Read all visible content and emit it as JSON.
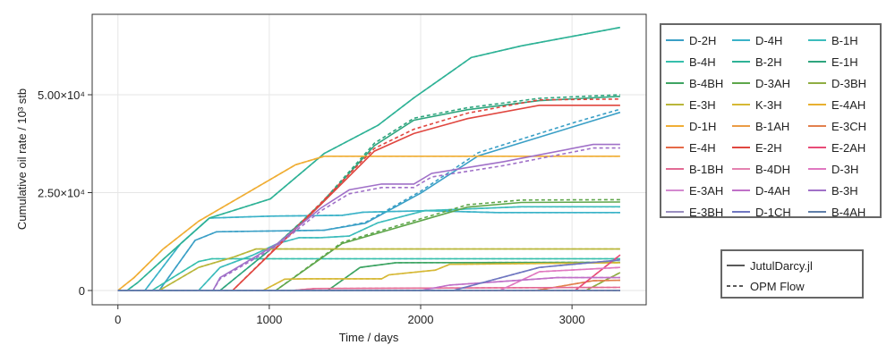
{
  "chart_data": {
    "type": "line",
    "xlabel": "Time / days",
    "ylabel": "Cumulative oil rate / 10³ stb",
    "xlim": [
      -170,
      3490
    ],
    "ylim": [
      -3650,
      70550
    ],
    "xticks": [
      {
        "v": 0,
        "label": "0"
      },
      {
        "v": 1000,
        "label": "1000"
      },
      {
        "v": 2000,
        "label": "2000"
      },
      {
        "v": 3000,
        "label": "3000"
      }
    ],
    "yticks": [
      {
        "v": 0,
        "label": "0"
      },
      {
        "v": 25000,
        "label": "2.50×10⁴"
      },
      {
        "v": 50000,
        "label": "5.00×10⁴"
      }
    ],
    "grid": true,
    "legend_placement": "right",
    "style_legend": [
      {
        "label": "JutulDarcy.jl",
        "dash": "solid"
      },
      {
        "label": "OPM Flow",
        "dash": "dashed"
      }
    ],
    "series": [
      {
        "name": "D-2H",
        "color": "#3a9fc6",
        "jutul": [
          [
            0,
            0
          ],
          [
            273,
            0
          ],
          [
            510,
            12800
          ],
          [
            652,
            15000
          ],
          [
            1363,
            15400
          ],
          [
            1635,
            17200
          ],
          [
            2002,
            24900
          ],
          [
            2381,
            34400
          ],
          [
            3021,
            42000
          ],
          [
            3318,
            45500
          ]
        ],
        "opm": [
          [
            0,
            0
          ],
          [
            273,
            0
          ],
          [
            510,
            12800
          ],
          [
            652,
            15000
          ],
          [
            1363,
            15400
          ],
          [
            1635,
            17400
          ],
          [
            2002,
            25400
          ],
          [
            2381,
            35200
          ],
          [
            3021,
            43000
          ],
          [
            3318,
            46300
          ]
        ]
      },
      {
        "name": "D-4H",
        "color": "#3ab2c8",
        "jutul": [
          [
            0,
            0
          ],
          [
            178,
            0
          ],
          [
            415,
            12000
          ],
          [
            604,
            18500
          ],
          [
            1007,
            19000
          ],
          [
            1481,
            19200
          ],
          [
            1620,
            20000
          ],
          [
            2040,
            20400
          ],
          [
            2500,
            19900
          ],
          [
            3318,
            19900
          ]
        ]
      },
      {
        "name": "B-1H",
        "color": "#3cbcbc",
        "jutul": [
          [
            0,
            0
          ],
          [
            533,
            0
          ],
          [
            675,
            5900
          ],
          [
            889,
            9000
          ],
          [
            1055,
            12000
          ],
          [
            1197,
            13500
          ],
          [
            1339,
            13500
          ],
          [
            1528,
            13900
          ],
          [
            1718,
            17300
          ],
          [
            2026,
            20400
          ],
          [
            2666,
            21400
          ],
          [
            3318,
            21400
          ]
        ]
      },
      {
        "name": "B-4H",
        "color": "#36bfac",
        "jutul": [
          [
            0,
            0
          ],
          [
            225,
            0
          ],
          [
            533,
            7400
          ],
          [
            620,
            8100
          ],
          [
            3318,
            8100
          ]
        ]
      },
      {
        "name": "B-2H",
        "color": "#2eb296",
        "jutul": [
          [
            0,
            0
          ],
          [
            60,
            0
          ],
          [
            130,
            2000
          ],
          [
            300,
            8000
          ],
          [
            604,
            18500
          ],
          [
            1007,
            23400
          ],
          [
            1363,
            35000
          ],
          [
            1718,
            42200
          ],
          [
            1955,
            49200
          ],
          [
            2334,
            59500
          ],
          [
            2666,
            62500
          ],
          [
            3318,
            67200
          ]
        ]
      },
      {
        "name": "E-1H",
        "color": "#2ea57e",
        "jutul": [
          [
            0,
            0
          ],
          [
            675,
            0
          ],
          [
            1055,
            12000
          ],
          [
            1339,
            21900
          ],
          [
            1694,
            37000
          ],
          [
            1955,
            43500
          ],
          [
            2310,
            46200
          ],
          [
            2784,
            48500
          ],
          [
            3318,
            49600
          ]
        ],
        "opm": [
          [
            0,
            0
          ],
          [
            675,
            0
          ],
          [
            1055,
            12000
          ],
          [
            1339,
            22100
          ],
          [
            1694,
            37600
          ],
          [
            1955,
            44000
          ],
          [
            2310,
            46700
          ],
          [
            2784,
            49100
          ],
          [
            3318,
            50000
          ]
        ]
      },
      {
        "name": "B-4BH",
        "color": "#3ea463",
        "jutul": [
          [
            0,
            0
          ],
          [
            1386,
            0
          ],
          [
            1600,
            5900
          ],
          [
            1837,
            7100
          ],
          [
            3318,
            7200
          ]
        ]
      },
      {
        "name": "D-3AH",
        "color": "#5ea64a",
        "jutul": [
          [
            0,
            0
          ],
          [
            1043,
            0
          ],
          [
            1481,
            12000
          ],
          [
            1955,
            17300
          ],
          [
            2310,
            21300
          ],
          [
            2666,
            22500
          ],
          [
            3318,
            22600
          ]
        ],
        "opm": [
          [
            0,
            0
          ],
          [
            1043,
            0
          ],
          [
            1481,
            12300
          ],
          [
            1955,
            17800
          ],
          [
            2310,
            21900
          ],
          [
            2666,
            23100
          ],
          [
            3318,
            23200
          ]
        ]
      },
      {
        "name": "D-3BH",
        "color": "#8fad42",
        "jutul": [
          [
            0,
            0
          ],
          [
            3092,
            0
          ],
          [
            3318,
            4600
          ]
        ]
      },
      {
        "name": "E-3H",
        "color": "#b9b63a",
        "jutul": [
          [
            0,
            0
          ],
          [
            273,
            0
          ],
          [
            533,
            5900
          ],
          [
            770,
            8600
          ],
          [
            912,
            10600
          ],
          [
            3318,
            10600
          ]
        ]
      },
      {
        "name": "K-3H",
        "color": "#d6b834",
        "jutul": [
          [
            0,
            0
          ],
          [
            960,
            0
          ],
          [
            1102,
            2900
          ],
          [
            1244,
            3000
          ],
          [
            1742,
            3000
          ],
          [
            1790,
            4000
          ],
          [
            2097,
            5200
          ],
          [
            2192,
            6700
          ],
          [
            3318,
            7100
          ]
        ]
      },
      {
        "name": "E-4AH",
        "color": "#e8b02f",
        "jutul": [
          [
            0,
            0
          ],
          [
            3318,
            0
          ]
        ]
      },
      {
        "name": "D-1H",
        "color": "#f0ae35",
        "jutul": [
          [
            0,
            0
          ],
          [
            107,
            3300
          ],
          [
            296,
            10500
          ],
          [
            533,
            17700
          ],
          [
            889,
            25700
          ],
          [
            1173,
            32100
          ],
          [
            1363,
            34300
          ],
          [
            3318,
            34300
          ]
        ]
      },
      {
        "name": "B-1AH",
        "color": "#eb9c45",
        "jutul": [
          [
            0,
            0
          ],
          [
            3318,
            0
          ]
        ]
      },
      {
        "name": "E-3CH",
        "color": "#e2804d",
        "jutul": [
          [
            0,
            0
          ],
          [
            2760,
            0
          ],
          [
            3140,
            2500
          ],
          [
            3318,
            2600
          ]
        ]
      },
      {
        "name": "E-4H",
        "color": "#e56a48",
        "jutul": [
          [
            0,
            0
          ],
          [
            3318,
            0
          ]
        ]
      },
      {
        "name": "E-2H",
        "color": "#e0463f",
        "jutul": [
          [
            0,
            0
          ],
          [
            758,
            0
          ],
          [
            1055,
            11200
          ],
          [
            1339,
            21900
          ],
          [
            1694,
            35600
          ],
          [
            1955,
            40100
          ],
          [
            2310,
            43900
          ],
          [
            2784,
            47300
          ],
          [
            3318,
            47300
          ]
        ],
        "opm": [
          [
            0,
            0
          ],
          [
            758,
            0
          ],
          [
            1055,
            11400
          ],
          [
            1339,
            22300
          ],
          [
            1694,
            36300
          ],
          [
            1955,
            41200
          ],
          [
            2310,
            45300
          ],
          [
            2784,
            48700
          ],
          [
            3318,
            48900
          ]
        ]
      },
      {
        "name": "E-2AH",
        "color": "#e84c78",
        "jutul": [
          [
            0,
            0
          ],
          [
            3021,
            0
          ],
          [
            3318,
            9100
          ]
        ]
      },
      {
        "name": "B-1BH",
        "color": "#e26a94",
        "jutul": [
          [
            0,
            0
          ],
          [
            1150,
            0
          ],
          [
            1300,
            500
          ],
          [
            3318,
            800
          ]
        ]
      },
      {
        "name": "B-4DH",
        "color": "#e482b0",
        "jutul": [
          [
            0,
            0
          ],
          [
            3318,
            0
          ]
        ]
      },
      {
        "name": "D-3H",
        "color": "#e078c0",
        "jutul": [
          [
            0,
            0
          ],
          [
            2524,
            0
          ],
          [
            2784,
            4800
          ],
          [
            3318,
            5900
          ]
        ]
      },
      {
        "name": "E-3AH",
        "color": "#d489d0",
        "jutul": [
          [
            0,
            0
          ],
          [
            3318,
            0
          ]
        ]
      },
      {
        "name": "D-4AH",
        "color": "#c070c8",
        "jutul": [
          [
            0,
            0
          ],
          [
            2000,
            0
          ],
          [
            2192,
            1400
          ],
          [
            2903,
            3300
          ],
          [
            3318,
            3300
          ]
        ]
      },
      {
        "name": "B-3H",
        "color": "#a070c8",
        "jutul": [
          [
            0,
            0
          ],
          [
            628,
            0
          ],
          [
            675,
            3300
          ],
          [
            1055,
            12000
          ],
          [
            1339,
            21000
          ],
          [
            1528,
            25700
          ],
          [
            1742,
            27200
          ],
          [
            1955,
            27200
          ],
          [
            2073,
            29900
          ],
          [
            2547,
            32900
          ],
          [
            3140,
            37300
          ],
          [
            3318,
            37300
          ]
        ],
        "opm": [
          [
            0,
            0
          ],
          [
            628,
            0
          ],
          [
            675,
            3000
          ],
          [
            1055,
            11500
          ],
          [
            1339,
            20300
          ],
          [
            1528,
            24700
          ],
          [
            1742,
            26300
          ],
          [
            1955,
            26300
          ],
          [
            2073,
            29000
          ],
          [
            2547,
            31900
          ],
          [
            3140,
            36400
          ],
          [
            3318,
            36400
          ]
        ]
      },
      {
        "name": "E-3BH",
        "color": "#9a8ec0",
        "jutul": [
          [
            0,
            0
          ],
          [
            3318,
            0
          ]
        ]
      },
      {
        "name": "D-1CH",
        "color": "#6f76c0",
        "jutul": [
          [
            0,
            0
          ],
          [
            2216,
            0
          ],
          [
            2784,
            5900
          ],
          [
            3318,
            7800
          ]
        ]
      },
      {
        "name": "B-4AH",
        "color": "#5f7ea8",
        "jutul": [
          [
            0,
            0
          ],
          [
            3318,
            0
          ]
        ]
      }
    ]
  }
}
